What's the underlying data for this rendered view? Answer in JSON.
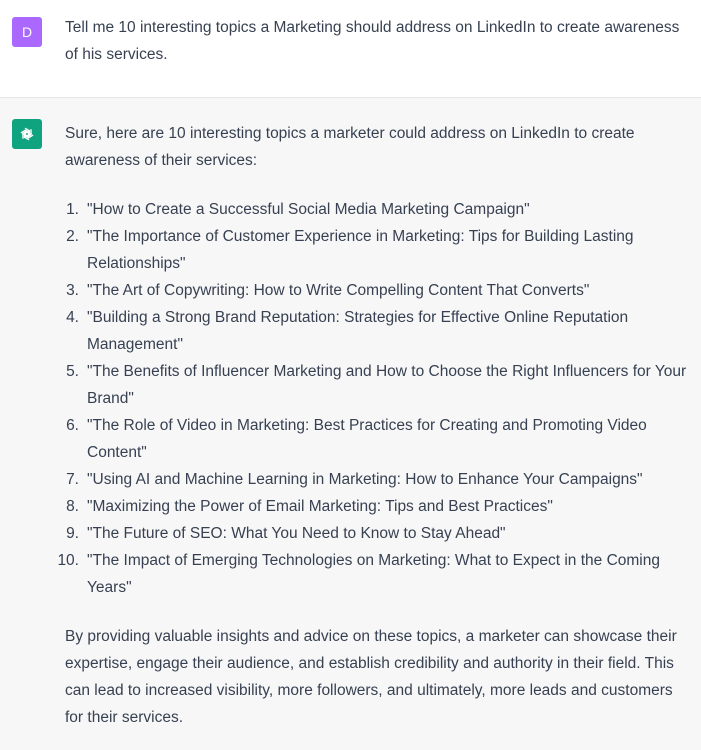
{
  "user": {
    "avatar_letter": "D",
    "message": "Tell me 10 interesting topics a Marketing should address on LinkedIn to create awareness of his services."
  },
  "assistant": {
    "avatar_icon": "openai-logo-icon",
    "intro": "Sure, here are 10 interesting topics a marketer could address on LinkedIn to create awareness of their services:",
    "topics": [
      {
        "num": "1.",
        "text": "\"How to Create a Successful Social Media Marketing Campaign\""
      },
      {
        "num": "2.",
        "text": "\"The Importance of Customer Experience in Marketing: Tips for Building Lasting Relationships\""
      },
      {
        "num": "3.",
        "text": "\"The Art of Copywriting: How to Write Compelling Content That Converts\""
      },
      {
        "num": "4.",
        "text": "\"Building a Strong Brand Reputation: Strategies for Effective Online Reputation Management\""
      },
      {
        "num": "5.",
        "text": "\"The Benefits of Influencer Marketing and How to Choose the Right Influencers for Your Brand\""
      },
      {
        "num": "6.",
        "text": "\"The Role of Video in Marketing: Best Practices for Creating and Promoting Video Content\""
      },
      {
        "num": "7.",
        "text": "\"Using AI and Machine Learning in Marketing: How to Enhance Your Campaigns\""
      },
      {
        "num": "8.",
        "text": "\"Maximizing the Power of Email Marketing: Tips and Best Practices\""
      },
      {
        "num": "9.",
        "text": "\"The Future of SEO: What You Need to Know to Stay Ahead\""
      },
      {
        "num": "10.",
        "text": "\"The Impact of Emerging Technologies on Marketing: What to Expect in the Coming Years\""
      }
    ],
    "outro": "By providing valuable insights and advice on these topics, a marketer can showcase their expertise, engage their audience, and establish credibility and authority in their field. This can lead to increased visibility, more followers, and ultimately, more leads and customers for their services."
  },
  "colors": {
    "user_avatar": "#ab68ff",
    "bot_avatar": "#10a37f",
    "assistant_bg": "#f7f7f8",
    "user_bg": "#ffffff",
    "text": "#374151"
  }
}
